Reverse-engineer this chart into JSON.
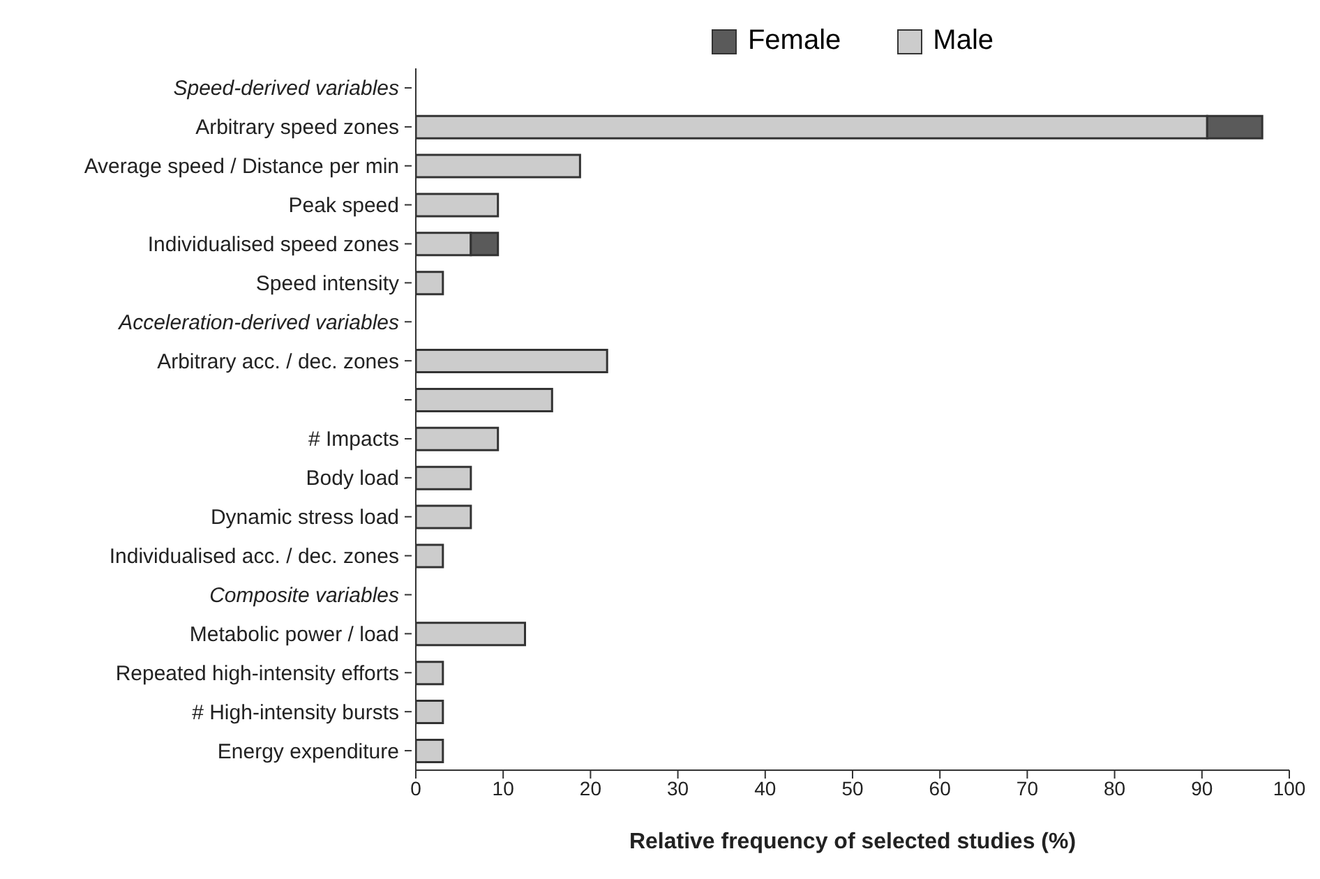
{
  "chart_data": {
    "type": "bar",
    "orientation": "horizontal",
    "stacked": true,
    "xlabel": "Relative frequency of selected studies (%)",
    "categories": [
      "Speed-derived variables",
      "Arbitrary speed zones",
      "Average speed / Distance per min",
      "Peak speed",
      "Individualised speed zones",
      "Speed intensity",
      "Acceleration-derived variables",
      "Arbitrary acc. / dec. zones",
      null,
      "# Impacts",
      "Body load",
      "Dynamic stress load",
      "Individualised acc. / dec. zones",
      "Composite variables",
      "Metabolic power / load",
      "Repeated high-intensity efforts",
      "# High-intensity bursts",
      "Energy expenditure"
    ],
    "series": [
      {
        "name": "Male",
        "color": "#cccccc",
        "values": [
          null,
          90.6,
          18.8,
          9.4,
          6.3,
          3.1,
          null,
          21.9,
          15.6,
          9.4,
          6.3,
          6.3,
          3.1,
          null,
          12.5,
          3.1,
          3.1,
          3.1
        ]
      },
      {
        "name": "Female",
        "color": "#5a5a5a",
        "values": [
          null,
          6.3,
          null,
          null,
          3.1,
          null,
          null,
          null,
          null,
          null,
          null,
          null,
          null,
          null,
          null,
          null,
          null,
          null
        ]
      }
    ],
    "xlim": [
      0,
      100
    ],
    "xticks": [
      0,
      10,
      20,
      30,
      40,
      50,
      60,
      70,
      80,
      90,
      100
    ],
    "legend": "top",
    "grid": false
  }
}
